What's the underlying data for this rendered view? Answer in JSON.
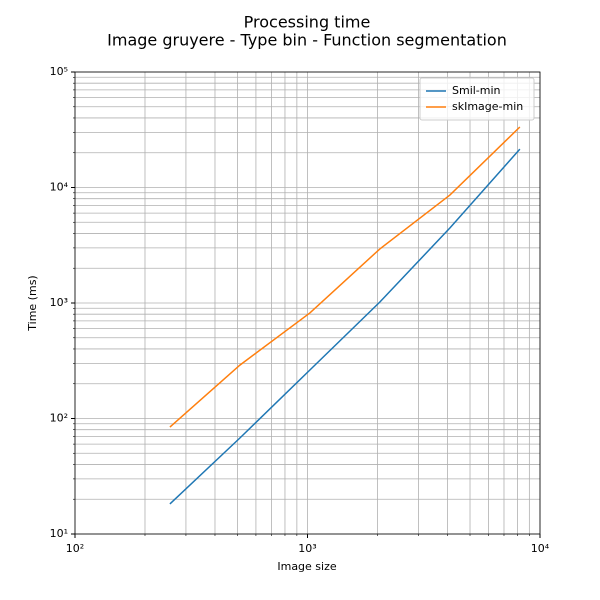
{
  "chart_data": {
    "type": "line",
    "title": "Processing time",
    "subtitle": "Image gruyere - Type bin - Function segmentation",
    "xlabel": "Image size",
    "ylabel": "Time (ms)",
    "x": [
      256,
      512,
      1024,
      2048,
      4096,
      8192
    ],
    "series": [
      {
        "name": "Smil-min",
        "color": "#1f77b4",
        "values": [
          18.2,
          67.8,
          263,
          1020,
          4460,
          21500
        ]
      },
      {
        "name": "skImage-min",
        "color": "#ff7f0e",
        "values": [
          84.4,
          290,
          820,
          2940,
          8600,
          33400
        ]
      }
    ],
    "xlog": true,
    "ylog": true,
    "xlim": [
      100,
      10000
    ],
    "ylim": [
      10,
      100000
    ],
    "xticks": [
      {
        "value": 100,
        "label": "10²"
      },
      {
        "value": 1000,
        "label": "10³"
      },
      {
        "value": 10000,
        "label": "10⁴"
      }
    ],
    "yticks": [
      {
        "value": 10,
        "label": "10¹"
      },
      {
        "value": 100,
        "label": "10²"
      },
      {
        "value": 1000,
        "label": "10³"
      },
      {
        "value": 10000,
        "label": "10⁴"
      },
      {
        "value": 100000,
        "label": "10⁵"
      }
    ],
    "grid": true,
    "minor_grid": true,
    "legend": "upper right"
  }
}
